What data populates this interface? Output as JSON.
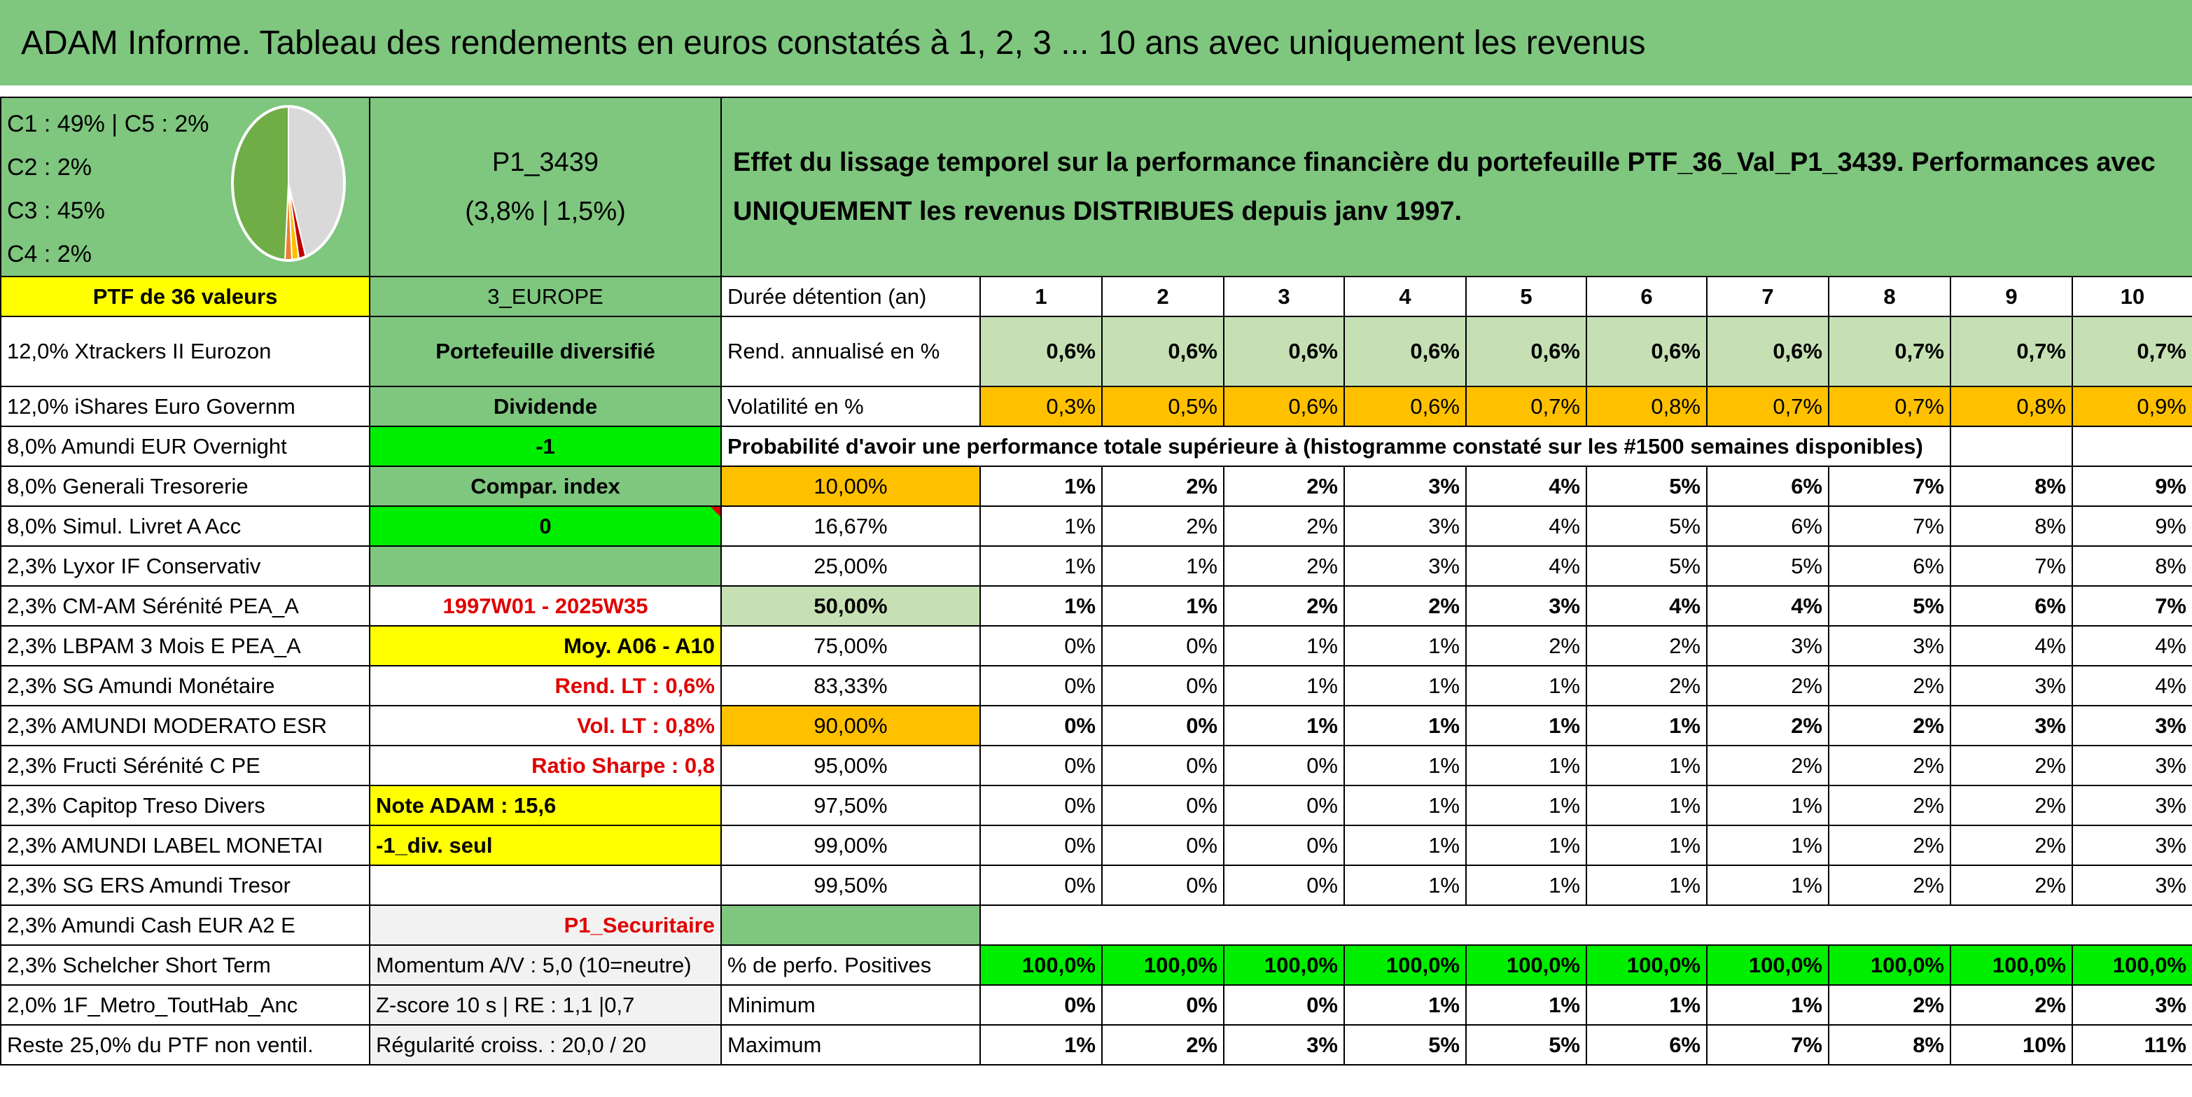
{
  "title": "ADAM Informe. Tableau des rendements en euros constatés à 1, 2, 3 ... 10 ans avec uniquement les revenus",
  "colors": {
    "banner": "#7fc67f",
    "light_green": "#c6e0b4",
    "orange": "#ffc000",
    "bright_green": "#00ee00",
    "yellow": "#ffff00",
    "red_text": "#e00000"
  },
  "allocation": {
    "lines": [
      "C1 : 49% | C5 : 2%",
      "C2 : 2%",
      "C3 : 45%",
      "C4 : 2%"
    ],
    "pie": [
      {
        "label": "C1",
        "value": 49,
        "color": "#70ad47"
      },
      {
        "label": "C2",
        "value": 2,
        "color": "#c00000"
      },
      {
        "label": "C3",
        "value": 45,
        "color": "#d9d9d9"
      },
      {
        "label": "C4",
        "value": 2,
        "color": "#ffc000"
      },
      {
        "label": "C5",
        "value": 2,
        "color": "#ed7d31"
      }
    ]
  },
  "fund": {
    "code": "P1_3439",
    "stats": "(3,8% | 1,5%)"
  },
  "description": "Effet du lissage temporel sur la performance financière du portefeuille PTF_36_Val_P1_3439. Performances avec UNIQUEMENT les revenus DISTRIBUES depuis janv 1997.",
  "holdings": [
    "PTF de 36 valeurs",
    "12,0% Xtrackers II Eurozon",
    "12,0% iShares Euro Governm",
    "8,0% Amundi EUR Overnight",
    "8,0% Generali Tresorerie",
    "8,0% Simul. Livret A Acc",
    "2,3% Lyxor IF Conservativ",
    "2,3% CM-AM Sérénité PEA_A",
    "2,3% LBPAM 3 Mois E PEA_A",
    "2,3% SG Amundi Monétaire",
    "2,3% AMUNDI MODERATO ESR",
    "2,3% Fructi Sérénité C PE",
    "2,3% Capitop Treso Divers",
    "2,3% AMUNDI LABEL MONETAI",
    "2,3% SG ERS Amundi Tresor",
    "2,3% Amundi Cash EUR A2 E",
    "2,3% Schelcher Short Term",
    "2,0% 1F_Metro_ToutHab_Anc",
    "Reste 25,0% du PTF non ventil."
  ],
  "info": [
    "3_EUROPE",
    "Portefeuille diversifié",
    "Dividende",
    "-1",
    "Compar. index",
    "0",
    "",
    "1997W01 - 2025W35",
    "Moy. A06 - A10",
    "Rend. LT : 0,6%",
    "Vol. LT : 0,8%",
    "Ratio Sharpe : 0,8",
    "Note ADAM : 15,6",
    "-1_div. seul",
    "",
    "P1_Securitaire",
    "Momentum A/V : 5,0 (10=neutre)",
    "Z-score 10 s | RE : 1,1 |0,7",
    "Régularité croiss. : 20,0 / 20"
  ],
  "table": {
    "durations_label": "Durée détention (an)",
    "durations": [
      "1",
      "2",
      "3",
      "4",
      "5",
      "6",
      "7",
      "8",
      "9",
      "10"
    ],
    "rend_label": "Rend. annualisé en %",
    "rend": [
      "0,6%",
      "0,6%",
      "0,6%",
      "0,6%",
      "0,6%",
      "0,6%",
      "0,6%",
      "0,7%",
      "0,7%",
      "0,7%"
    ],
    "vol_label": "Volatilité en %",
    "vol": [
      "0,3%",
      "0,5%",
      "0,6%",
      "0,6%",
      "0,7%",
      "0,8%",
      "0,7%",
      "0,7%",
      "0,8%",
      "0,9%"
    ],
    "prob_title": "Probabilité d'avoir une performance totale supérieure à (histogramme constaté sur les #1500 semaines disponibles)",
    "percentiles": [
      {
        "label": "10,00%",
        "values": [
          "1%",
          "2%",
          "2%",
          "3%",
          "4%",
          "5%",
          "6%",
          "7%",
          "8%",
          "9%"
        ]
      },
      {
        "label": "16,67%",
        "values": [
          "1%",
          "2%",
          "2%",
          "3%",
          "4%",
          "5%",
          "6%",
          "7%",
          "8%",
          "9%"
        ]
      },
      {
        "label": "25,00%",
        "values": [
          "1%",
          "1%",
          "2%",
          "3%",
          "4%",
          "5%",
          "5%",
          "6%",
          "7%",
          "8%"
        ]
      },
      {
        "label": "50,00%",
        "values": [
          "1%",
          "1%",
          "2%",
          "2%",
          "3%",
          "4%",
          "4%",
          "5%",
          "6%",
          "7%"
        ]
      },
      {
        "label": "75,00%",
        "values": [
          "0%",
          "0%",
          "1%",
          "1%",
          "2%",
          "2%",
          "3%",
          "3%",
          "4%",
          "4%"
        ]
      },
      {
        "label": "83,33%",
        "values": [
          "0%",
          "0%",
          "1%",
          "1%",
          "1%",
          "2%",
          "2%",
          "2%",
          "3%",
          "4%"
        ]
      },
      {
        "label": "90,00%",
        "values": [
          "0%",
          "0%",
          "1%",
          "1%",
          "1%",
          "1%",
          "2%",
          "2%",
          "3%",
          "3%"
        ]
      },
      {
        "label": "95,00%",
        "values": [
          "0%",
          "0%",
          "0%",
          "1%",
          "1%",
          "1%",
          "2%",
          "2%",
          "2%",
          "3%"
        ]
      },
      {
        "label": "97,50%",
        "values": [
          "0%",
          "0%",
          "0%",
          "1%",
          "1%",
          "1%",
          "1%",
          "2%",
          "2%",
          "3%"
        ]
      },
      {
        "label": "99,00%",
        "values": [
          "0%",
          "0%",
          "0%",
          "1%",
          "1%",
          "1%",
          "1%",
          "2%",
          "2%",
          "3%"
        ]
      },
      {
        "label": "99,50%",
        "values": [
          "0%",
          "0%",
          "0%",
          "1%",
          "1%",
          "1%",
          "1%",
          "2%",
          "2%",
          "3%"
        ]
      }
    ],
    "pos_label": "% de perfo. Positives",
    "pos": [
      "100,0%",
      "100,0%",
      "100,0%",
      "100,0%",
      "100,0%",
      "100,0%",
      "100,0%",
      "100,0%",
      "100,0%",
      "100,0%"
    ],
    "min_label": "Minimum",
    "min": [
      "0%",
      "0%",
      "0%",
      "1%",
      "1%",
      "1%",
      "1%",
      "2%",
      "2%",
      "3%"
    ],
    "max_label": "Maximum",
    "max": [
      "1%",
      "2%",
      "3%",
      "5%",
      "5%",
      "6%",
      "7%",
      "8%",
      "10%",
      "11%"
    ]
  }
}
